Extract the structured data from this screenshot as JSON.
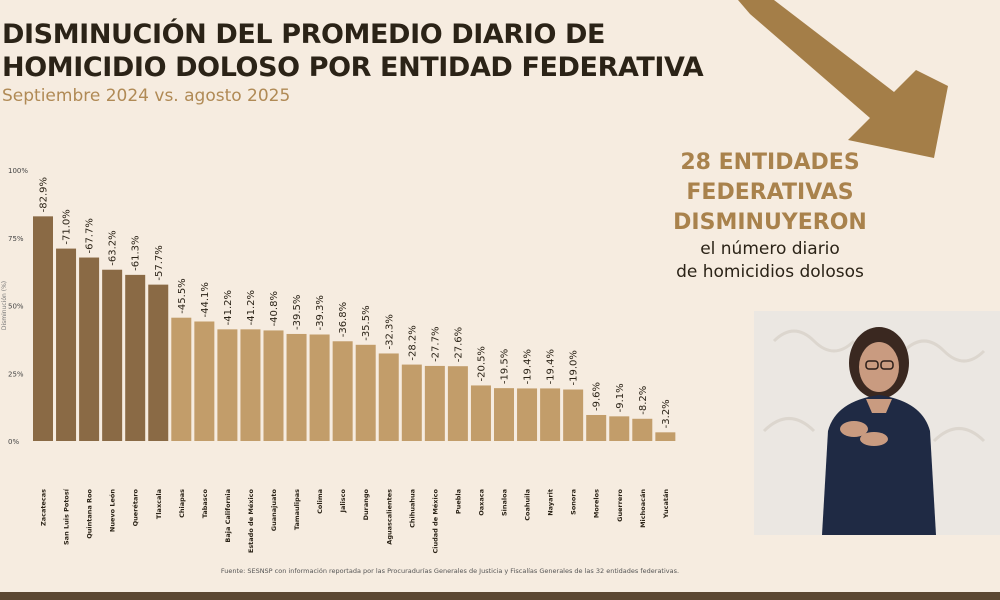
{
  "header": {
    "title_line1": "DISMINUCIÓN DEL PROMEDIO DIARIO DE",
    "title_line2": "HOMICIDIO DOLOSO POR ENTIDAD FEDERATIVA",
    "subtitle": "Septiembre 2024 vs. agosto 2025"
  },
  "callout": {
    "line1": "28 ENTIDADES",
    "line2": "FEDERATIVAS",
    "line3": "DISMINUYERON",
    "line4": "el número diario",
    "line5": "de homicidios dolosos"
  },
  "source_note": "Fuente: SESNSP con información reportada por las Procuradurías Generales de Justicia y Fiscalías Generales de las 32 entidades federativas.",
  "colors": {
    "title": "#2b2317",
    "gold": "#b08a55",
    "callout_gold": "#a9824c",
    "bar_dark": "#8a6a45",
    "bar_light": "#c29d6a",
    "background": "#f6ece0",
    "arrow": "#a47e48"
  },
  "chart_data": {
    "type": "bar",
    "ylabel": "Disminución (%)",
    "ylim": [
      0,
      100
    ],
    "yticks": [
      "0%",
      "25%",
      "50%",
      "75%",
      "100%"
    ],
    "grid": false,
    "categories": [
      "Zacatecas",
      "San Luis Potosí",
      "Quintana Roo",
      "Nuevo León",
      "Querétaro",
      "Tlaxcala",
      "Chiapas",
      "Tabasco",
      "Baja California",
      "Estado de México",
      "Guanajuato",
      "Tamaulipas",
      "Colima",
      "Jalisco",
      "Durango",
      "Aguascalientes",
      "Chihuahua",
      "Ciudad de México",
      "Puebla",
      "Oaxaca",
      "Sinaloa",
      "Coahuila",
      "Nayarit",
      "Sonora",
      "Morelos",
      "Guerrero",
      "Michoacán",
      "Yucatán"
    ],
    "values": [
      82.9,
      71.0,
      67.7,
      63.2,
      61.3,
      57.7,
      45.5,
      44.1,
      41.2,
      41.2,
      40.8,
      39.5,
      39.3,
      36.8,
      35.5,
      32.3,
      28.2,
      27.7,
      27.6,
      20.5,
      19.5,
      19.4,
      19.4,
      19.0,
      9.6,
      9.1,
      8.2,
      3.2
    ],
    "labels": [
      "-82.9%",
      "-71.0%",
      "-67.7%",
      "-63.2%",
      "-61.3%",
      "-57.7%",
      "-45.5%",
      "-44.1%",
      "-41.2%",
      "-41.2%",
      "-40.8%",
      "-39.5%",
      "-39.3%",
      "-36.8%",
      "-35.5%",
      "-32.3%",
      "-28.2%",
      "-27.7%",
      "-27.6%",
      "-20.5%",
      "-19.5%",
      "-19.4%",
      "-19.4%",
      "-19.0%",
      "-9.6%",
      "-9.1%",
      "-8.2%",
      "-3.2%"
    ],
    "highlight_count": 6
  }
}
